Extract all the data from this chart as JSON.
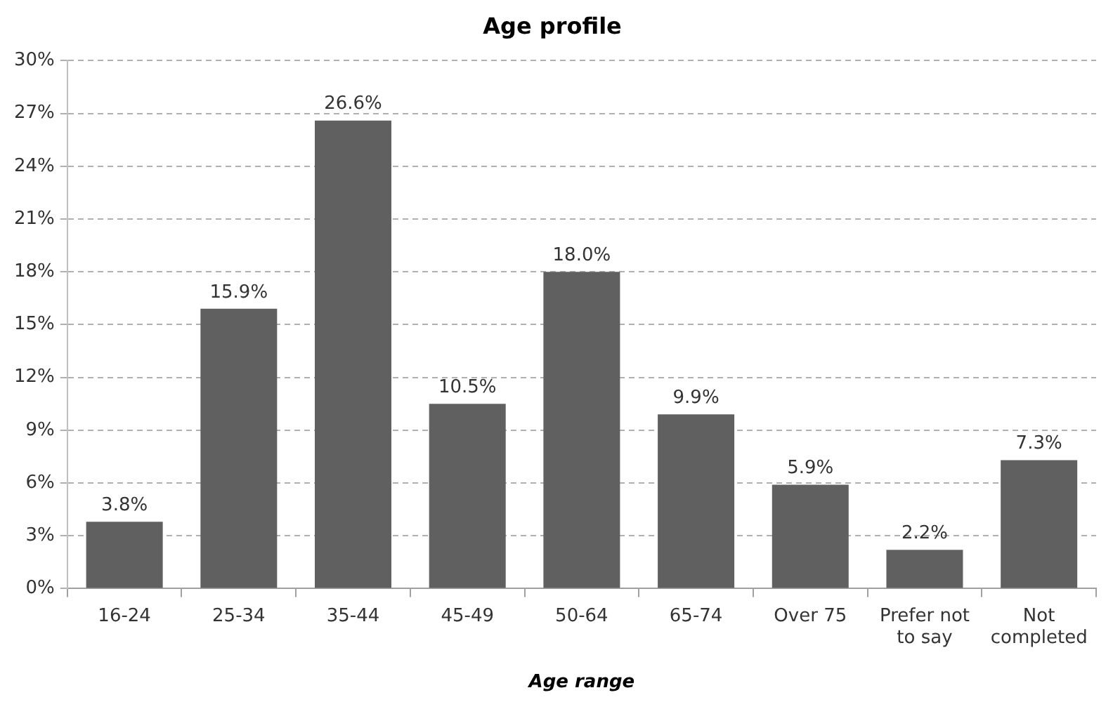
{
  "chart_data": {
    "type": "bar",
    "title": "Age profile",
    "xlabel": "Age range",
    "categories": [
      "16-24",
      "25-34",
      "35-44",
      "45-49",
      "50-64",
      "65-74",
      "Over 75",
      "Prefer not to say",
      "Not completed"
    ],
    "values": [
      3.8,
      15.9,
      26.6,
      10.5,
      18.0,
      9.9,
      5.9,
      2.2,
      7.3
    ],
    "color": "#606060",
    "value_labels": [
      "3.8%",
      "15.9%",
      "26.6%",
      "10.5%",
      "18.0%",
      "9.9%",
      "5.9%",
      "2.2%",
      "7.3%"
    ],
    "ylim": [
      0,
      30
    ],
    "yticks": [
      {
        "value": 0,
        "label": "0%"
      },
      {
        "value": 3,
        "label": "3%"
      },
      {
        "value": 6,
        "label": "6%"
      },
      {
        "value": 9,
        "label": "9%"
      },
      {
        "value": 12,
        "label": "12%"
      },
      {
        "value": 15,
        "label": "15%"
      },
      {
        "value": 18,
        "label": "18%"
      },
      {
        "value": 21,
        "label": "21%"
      },
      {
        "value": 24,
        "label": "24%"
      },
      {
        "value": 27,
        "label": "27%"
      },
      {
        "value": 30,
        "label": "30%"
      }
    ],
    "grid": "y"
  }
}
